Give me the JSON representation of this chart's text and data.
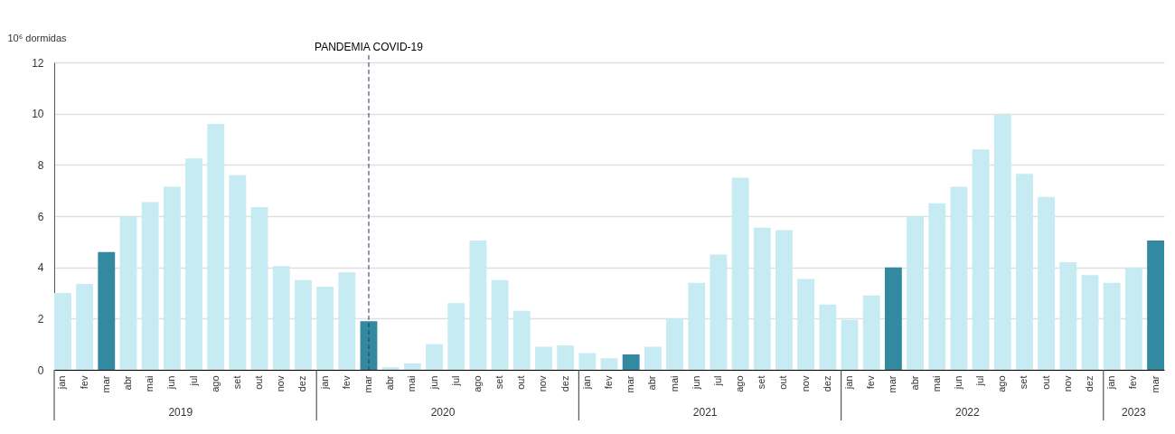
{
  "chart_data": {
    "type": "bar",
    "ylabel": "10⁶ dormidas",
    "x": [
      "2019-01",
      "2019-02",
      "2019-03",
      "2019-04",
      "2019-05",
      "2019-06",
      "2019-07",
      "2019-08",
      "2019-09",
      "2019-10",
      "2019-11",
      "2019-12",
      "2020-01",
      "2020-02",
      "2020-03",
      "2020-04",
      "2020-05",
      "2020-06",
      "2020-07",
      "2020-08",
      "2020-09",
      "2020-10",
      "2020-11",
      "2020-12",
      "2021-01",
      "2021-02",
      "2021-03",
      "2021-04",
      "2021-05",
      "2021-06",
      "2021-07",
      "2021-08",
      "2021-09",
      "2021-10",
      "2021-11",
      "2021-12",
      "2022-01",
      "2022-02",
      "2022-03",
      "2022-04",
      "2022-05",
      "2022-06",
      "2022-07",
      "2022-08",
      "2022-09",
      "2022-10",
      "2022-11",
      "2022-12",
      "2023-01",
      "2023-02",
      "2023-03"
    ],
    "values": [
      3.0,
      3.35,
      4.6,
      6.0,
      6.55,
      7.15,
      8.25,
      9.6,
      7.6,
      6.35,
      4.05,
      3.5,
      3.25,
      3.8,
      1.9,
      0.1,
      0.25,
      1.0,
      2.6,
      5.05,
      3.5,
      2.3,
      0.9,
      0.95,
      0.65,
      0.45,
      0.6,
      0.9,
      2.0,
      3.4,
      4.5,
      7.5,
      5.55,
      5.45,
      3.55,
      2.55,
      1.95,
      2.9,
      4.0,
      6.0,
      6.5,
      7.15,
      8.6,
      9.95,
      7.65,
      6.75,
      4.2,
      3.7,
      3.4,
      4.0,
      5.05
    ],
    "colors": [
      "#c6ebf2",
      "#c6ebf2",
      "#338aa0",
      "#c6ebf2",
      "#c6ebf2",
      "#c6ebf2",
      "#c6ebf2",
      "#c6ebf2",
      "#c6ebf2",
      "#c6ebf2",
      "#c6ebf2",
      "#c6ebf2",
      "#c6ebf2",
      "#c6ebf2",
      "#338aa0",
      "#c6ebf2",
      "#c6ebf2",
      "#c6ebf2",
      "#c6ebf2",
      "#c6ebf2",
      "#c6ebf2",
      "#c6ebf2",
      "#c6ebf2",
      "#c6ebf2",
      "#c6ebf2",
      "#c6ebf2",
      "#338aa0",
      "#c6ebf2",
      "#c6ebf2",
      "#c6ebf2",
      "#c6ebf2",
      "#c6ebf2",
      "#c6ebf2",
      "#c6ebf2",
      "#c6ebf2",
      "#c6ebf2",
      "#c6ebf2",
      "#c6ebf2",
      "#338aa0",
      "#c6ebf2",
      "#c6ebf2",
      "#c6ebf2",
      "#c6ebf2",
      "#c6ebf2",
      "#c6ebf2",
      "#c6ebf2",
      "#c6ebf2",
      "#c6ebf2",
      "#c6ebf2",
      "#c6ebf2",
      "#338aa0"
    ],
    "xticks": [
      {
        "value": "2019-01",
        "label": "jan"
      },
      {
        "value": "2019-02",
        "label": "fev"
      },
      {
        "value": "2019-03",
        "label": "mar"
      },
      {
        "value": "2019-04",
        "label": "abr"
      },
      {
        "value": "2019-05",
        "label": "mai"
      },
      {
        "value": "2019-06",
        "label": "jun"
      },
      {
        "value": "2019-07",
        "label": "jul"
      },
      {
        "value": "2019-08",
        "label": "ago"
      },
      {
        "value": "2019-09",
        "label": "set"
      },
      {
        "value": "2019-10",
        "label": "out"
      },
      {
        "value": "2019-11",
        "label": "nov"
      },
      {
        "value": "2019-12",
        "label": "dez"
      },
      {
        "value": "2020-01",
        "label": "jan"
      },
      {
        "value": "2020-02",
        "label": "fev"
      },
      {
        "value": "2020-03",
        "label": "mar"
      },
      {
        "value": "2020-04",
        "label": "abr"
      },
      {
        "value": "2020-05",
        "label": "mai"
      },
      {
        "value": "2020-06",
        "label": "jun"
      },
      {
        "value": "2020-07",
        "label": "jul"
      },
      {
        "value": "2020-08",
        "label": "ago"
      },
      {
        "value": "2020-09",
        "label": "set"
      },
      {
        "value": "2020-10",
        "label": "out"
      },
      {
        "value": "2020-11",
        "label": "nov"
      },
      {
        "value": "2020-12",
        "label": "dez"
      },
      {
        "value": "2021-01",
        "label": "jan"
      },
      {
        "value": "2021-02",
        "label": "fev"
      },
      {
        "value": "2021-03",
        "label": "mar"
      },
      {
        "value": "2021-04",
        "label": "abr"
      },
      {
        "value": "2021-05",
        "label": "mai"
      },
      {
        "value": "2021-06",
        "label": "jun"
      },
      {
        "value": "2021-07",
        "label": "jul"
      },
      {
        "value": "2021-08",
        "label": "ago"
      },
      {
        "value": "2021-09",
        "label": "set"
      },
      {
        "value": "2021-10",
        "label": "out"
      },
      {
        "value": "2021-11",
        "label": "nov"
      },
      {
        "value": "2021-12",
        "label": "dez"
      },
      {
        "value": "2022-01",
        "label": "jan"
      },
      {
        "value": "2022-02",
        "label": "fev"
      },
      {
        "value": "2022-03",
        "label": "mar"
      },
      {
        "value": "2022-04",
        "label": "abr"
      },
      {
        "value": "2022-05",
        "label": "mai"
      },
      {
        "value": "2022-06",
        "label": "jun"
      },
      {
        "value": "2022-07",
        "label": "jul"
      },
      {
        "value": "2022-08",
        "label": "ago"
      },
      {
        "value": "2022-09",
        "label": "set"
      },
      {
        "value": "2022-10",
        "label": "out"
      },
      {
        "value": "2022-11",
        "label": "nov"
      },
      {
        "value": "2022-12",
        "label": "dez"
      },
      {
        "value": "2023-01",
        "label": "jan"
      },
      {
        "value": "2023-02",
        "label": "fev"
      },
      {
        "value": "2023-03",
        "label": "mar"
      }
    ],
    "xlim": [
      "2018-12-16",
      "2023-03-16"
    ],
    "ylim": [
      0,
      12
    ],
    "yticks": [
      0,
      2,
      4,
      6,
      8,
      10,
      12
    ],
    "grid": "y",
    "ref_lines": [
      {
        "axis": "x",
        "value": "2020-03",
        "label": "PANDEMIA COVID-19",
        "color": "#1f3a5a",
        "line_style": "dashed"
      }
    ],
    "annotations": [
      "2019",
      "2020",
      "2021",
      "2022",
      "2023"
    ]
  }
}
